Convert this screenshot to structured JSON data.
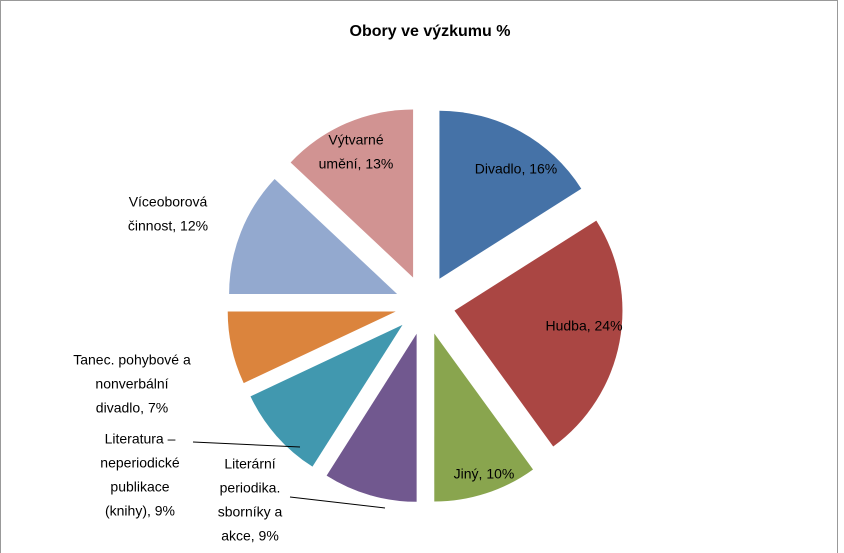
{
  "chart_data": {
    "type": "pie",
    "title": "Obory ve výzkumu  %",
    "values": [
      16,
      24,
      10,
      9,
      9,
      7,
      12,
      13
    ],
    "value_labels": [
      [
        "Divadlo, 16%"
      ],
      [
        "Hudba, 24%"
      ],
      [
        "Jiný, 10%"
      ],
      [
        "Literární",
        "periodika.",
        "sborníky a",
        "akce, 9%"
      ],
      [
        "Literatura –",
        "neperiodické",
        "publikace",
        "(knihy), 9%"
      ],
      [
        "Tanec. pohybové a",
        "nonverbální",
        "divadlo, 7%"
      ],
      [
        "Víceoborová",
        "činnost, 12%"
      ],
      [
        "Výtvarné",
        "umění, 13%"
      ]
    ],
    "colors": [
      "#4572a7",
      "#aa4643",
      "#89a54e",
      "#71588f",
      "#4198af",
      "#db843d",
      "#93a9cf",
      "#d19392"
    ]
  }
}
